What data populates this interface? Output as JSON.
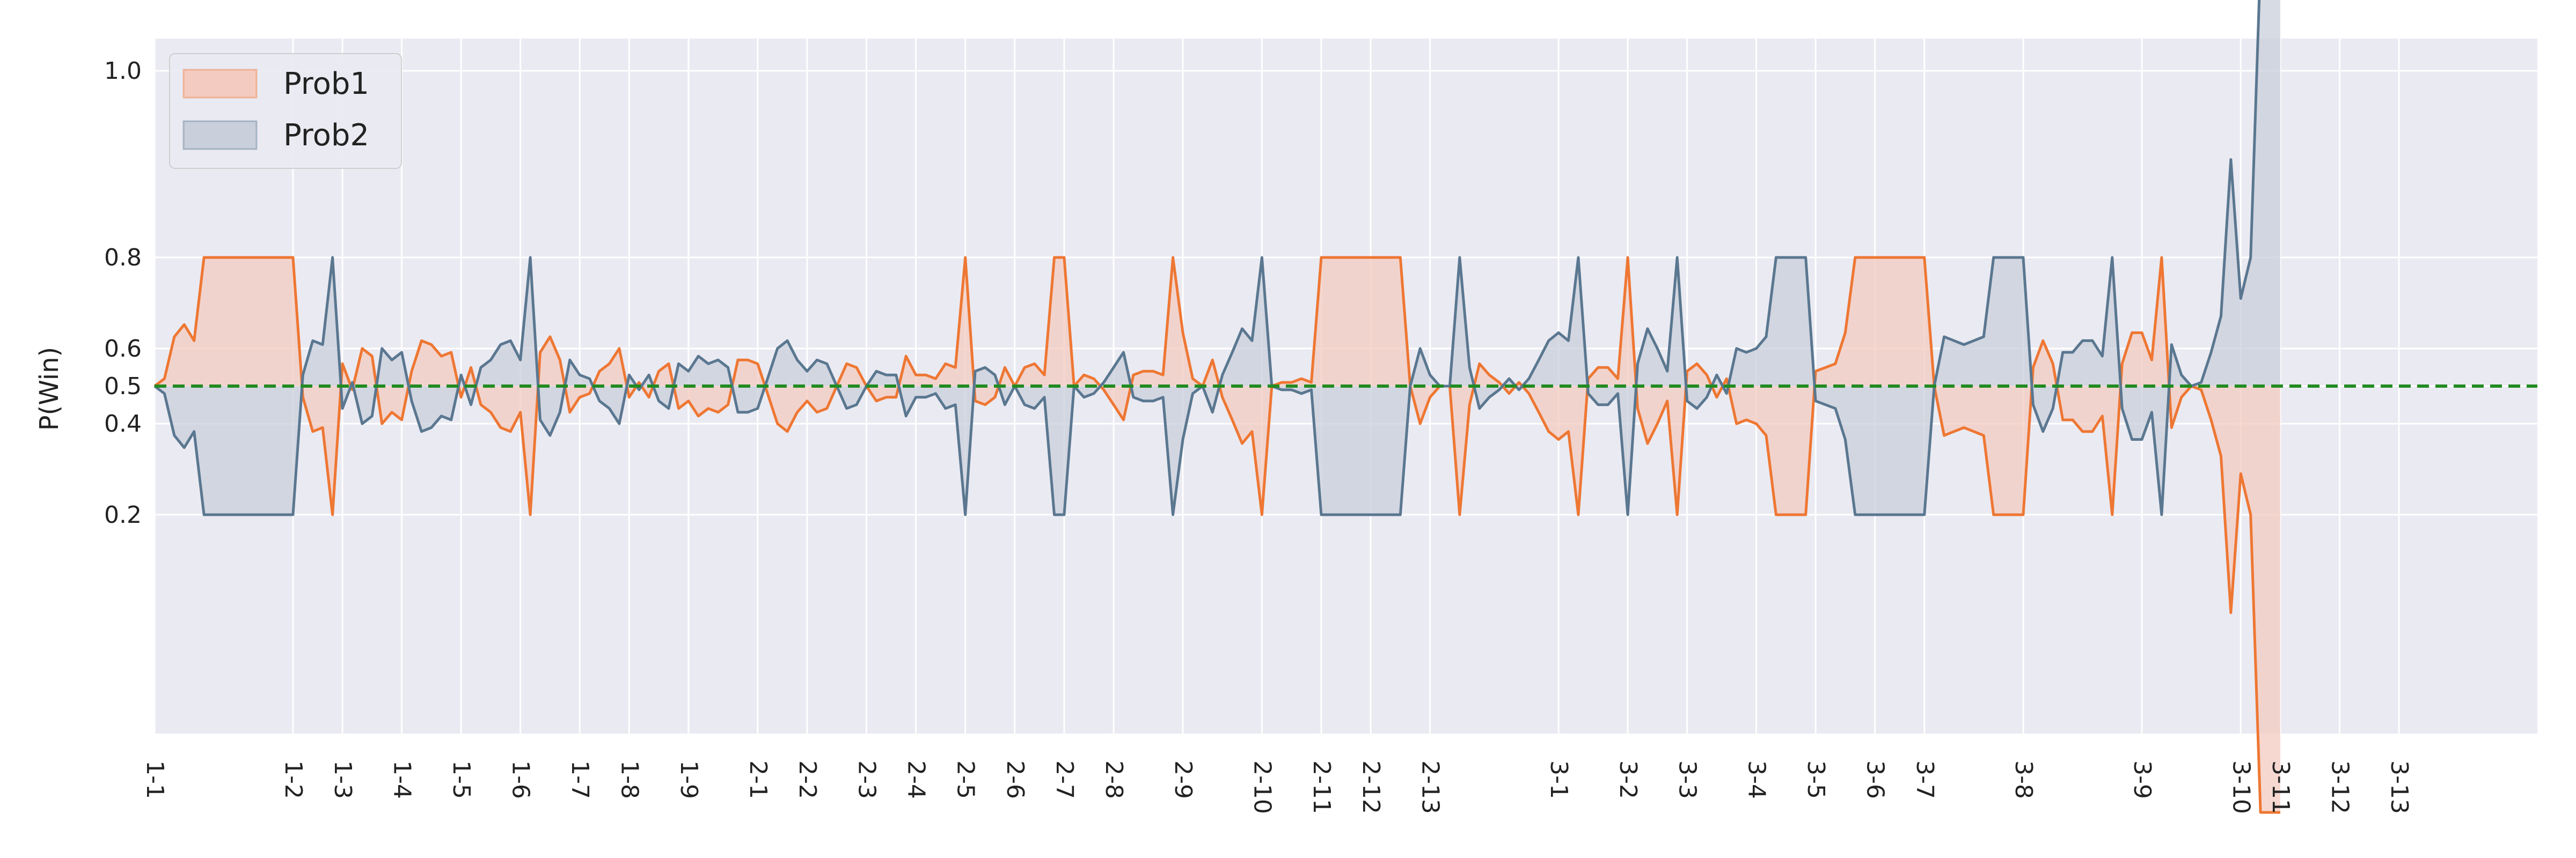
{
  "chart_data": {
    "type": "area",
    "title": "",
    "xlabel": "",
    "ylabel": "P(Win)",
    "ylim": [
      0.0,
      1.05
    ],
    "y_scale": "logit",
    "yticks": [
      0.2,
      0.4,
      0.5,
      0.6,
      0.8,
      1.0
    ],
    "ytick_labels": [
      "0.2",
      "0.4",
      "0.5",
      "0.6",
      "0.8",
      "1.0"
    ],
    "xticks": [
      {
        "x": 0,
        "label": "1-1"
      },
      {
        "x": 14,
        "label": "1-2"
      },
      {
        "x": 19,
        "label": "1-3"
      },
      {
        "x": 25,
        "label": "1-4"
      },
      {
        "x": 31,
        "label": "1-5"
      },
      {
        "x": 37,
        "label": "1-6"
      },
      {
        "x": 43,
        "label": "1-7"
      },
      {
        "x": 48,
        "label": "1-8"
      },
      {
        "x": 54,
        "label": "1-9"
      },
      {
        "x": 61,
        "label": "2-1"
      },
      {
        "x": 66,
        "label": "2-2"
      },
      {
        "x": 72,
        "label": "2-3"
      },
      {
        "x": 77,
        "label": "2-4"
      },
      {
        "x": 82,
        "label": "2-5"
      },
      {
        "x": 87,
        "label": "2-6"
      },
      {
        "x": 92,
        "label": "2-7"
      },
      {
        "x": 97,
        "label": "2-8"
      },
      {
        "x": 104,
        "label": "2-9"
      },
      {
        "x": 112,
        "label": "2-10"
      },
      {
        "x": 118,
        "label": "2-11"
      },
      {
        "x": 123,
        "label": "2-12"
      },
      {
        "x": 129,
        "label": "2-13"
      },
      {
        "x": 142,
        "label": "3-1"
      },
      {
        "x": 149,
        "label": "3-2"
      },
      {
        "x": 155,
        "label": "3-3"
      },
      {
        "x": 162,
        "label": "3-4"
      },
      {
        "x": 168,
        "label": "3-5"
      },
      {
        "x": 174,
        "label": "3-6"
      },
      {
        "x": 179,
        "label": "3-7"
      },
      {
        "x": 189,
        "label": "3-8"
      },
      {
        "x": 201,
        "label": "3-9"
      },
      {
        "x": 211,
        "label": "3-10"
      },
      {
        "x": 215,
        "label": "3-11"
      },
      {
        "x": 221,
        "label": "3-12"
      },
      {
        "x": 227,
        "label": "3-13"
      }
    ],
    "xlim": [
      0,
      241
    ],
    "reference_line": {
      "y": 0.5,
      "color": "#228b22",
      "style": "dashed"
    },
    "grid": true,
    "legend_position": "top-left",
    "series": [
      {
        "name": "Prob1",
        "color": "#ee7733",
        "fill": "#f3cbc0",
        "values": [
          0.5,
          0.52,
          0.63,
          0.66,
          0.62,
          0.8,
          0.8,
          0.8,
          0.8,
          0.8,
          0.8,
          0.8,
          0.8,
          0.8,
          0.8,
          0.47,
          0.38,
          0.39,
          0.2,
          0.56,
          0.49,
          0.6,
          0.58,
          0.4,
          0.43,
          0.41,
          0.54,
          0.62,
          0.61,
          0.58,
          0.59,
          0.47,
          0.55,
          0.45,
          0.43,
          0.39,
          0.38,
          0.43,
          0.2,
          0.59,
          0.63,
          0.57,
          0.43,
          0.47,
          0.48,
          0.54,
          0.56,
          0.6,
          0.47,
          0.51,
          0.47,
          0.54,
          0.56,
          0.44,
          0.46,
          0.42,
          0.44,
          0.43,
          0.45,
          0.57,
          0.57,
          0.56,
          0.48,
          0.4,
          0.38,
          0.43,
          0.46,
          0.43,
          0.44,
          0.5,
          0.56,
          0.55,
          0.5,
          0.46,
          0.47,
          0.47,
          0.58,
          0.53,
          0.53,
          0.52,
          0.56,
          0.55,
          0.8,
          0.46,
          0.45,
          0.47,
          0.55,
          0.5,
          0.55,
          0.56,
          0.53,
          0.8,
          0.8,
          0.5,
          0.53,
          0.52,
          0.49,
          0.45,
          0.41,
          0.53,
          0.54,
          0.54,
          0.53,
          0.8,
          0.64,
          0.52,
          0.5,
          0.57,
          0.47,
          0.41,
          0.35,
          0.38,
          0.2,
          0.5,
          0.51,
          0.51,
          0.52,
          0.51,
          0.8,
          0.8,
          0.8,
          0.8,
          0.8,
          0.8,
          0.8,
          0.8,
          0.8,
          0.5,
          0.4,
          0.47,
          0.5,
          0.5,
          0.2,
          0.45,
          0.56,
          0.53,
          0.51,
          0.48,
          0.51,
          0.48,
          0.43,
          0.38,
          0.36,
          0.38,
          0.2,
          0.52,
          0.55,
          0.55,
          0.52,
          0.8,
          0.44,
          0.35,
          0.4,
          0.46,
          0.2,
          0.54,
          0.56,
          0.53,
          0.47,
          0.52,
          0.4,
          0.41,
          0.4,
          0.37,
          0.2,
          0.2,
          0.2,
          0.2,
          0.54,
          0.55,
          0.56,
          0.64,
          0.8,
          0.8,
          0.8,
          0.8,
          0.8,
          0.8,
          0.8,
          0.8,
          0.5,
          0.37,
          0.38,
          0.39,
          0.38,
          0.37,
          0.2,
          0.2,
          0.2,
          0.2,
          0.55,
          0.62,
          0.56,
          0.41,
          0.41,
          0.38,
          0.38,
          0.42,
          0.2,
          0.56,
          0.64,
          0.64,
          0.57,
          0.8,
          0.39,
          0.47,
          0.5,
          0.49,
          0.41,
          0.32,
          0.08,
          0.28,
          0.2,
          0.01,
          0.01,
          0.01
        ]
      },
      {
        "name": "Prob2",
        "color": "#5a7790",
        "fill": "#c9cfdb",
        "values": [
          0.5,
          0.48,
          0.37,
          0.34,
          0.38,
          0.2,
          0.2,
          0.2,
          0.2,
          0.2,
          0.2,
          0.2,
          0.2,
          0.2,
          0.2,
          0.53,
          0.62,
          0.61,
          0.8,
          0.44,
          0.51,
          0.4,
          0.42,
          0.6,
          0.57,
          0.59,
          0.46,
          0.38,
          0.39,
          0.42,
          0.41,
          0.53,
          0.45,
          0.55,
          0.57,
          0.61,
          0.62,
          0.57,
          0.8,
          0.41,
          0.37,
          0.43,
          0.57,
          0.53,
          0.52,
          0.46,
          0.44,
          0.4,
          0.53,
          0.49,
          0.53,
          0.46,
          0.44,
          0.56,
          0.54,
          0.58,
          0.56,
          0.57,
          0.55,
          0.43,
          0.43,
          0.44,
          0.52,
          0.6,
          0.62,
          0.57,
          0.54,
          0.57,
          0.56,
          0.5,
          0.44,
          0.45,
          0.5,
          0.54,
          0.53,
          0.53,
          0.42,
          0.47,
          0.47,
          0.48,
          0.44,
          0.45,
          0.2,
          0.54,
          0.55,
          0.53,
          0.45,
          0.5,
          0.45,
          0.44,
          0.47,
          0.2,
          0.2,
          0.5,
          0.47,
          0.48,
          0.51,
          0.55,
          0.59,
          0.47,
          0.46,
          0.46,
          0.47,
          0.2,
          0.36,
          0.48,
          0.5,
          0.43,
          0.53,
          0.59,
          0.65,
          0.62,
          0.8,
          0.5,
          0.49,
          0.49,
          0.48,
          0.49,
          0.2,
          0.2,
          0.2,
          0.2,
          0.2,
          0.2,
          0.2,
          0.2,
          0.2,
          0.5,
          0.6,
          0.53,
          0.5,
          0.5,
          0.8,
          0.55,
          0.44,
          0.47,
          0.49,
          0.52,
          0.49,
          0.52,
          0.57,
          0.62,
          0.64,
          0.62,
          0.8,
          0.48,
          0.45,
          0.45,
          0.48,
          0.2,
          0.56,
          0.65,
          0.6,
          0.54,
          0.8,
          0.46,
          0.44,
          0.47,
          0.53,
          0.48,
          0.6,
          0.59,
          0.6,
          0.63,
          0.8,
          0.8,
          0.8,
          0.8,
          0.46,
          0.45,
          0.44,
          0.36,
          0.2,
          0.2,
          0.2,
          0.2,
          0.2,
          0.2,
          0.2,
          0.2,
          0.5,
          0.63,
          0.62,
          0.61,
          0.62,
          0.63,
          0.8,
          0.8,
          0.8,
          0.8,
          0.45,
          0.38,
          0.44,
          0.59,
          0.59,
          0.62,
          0.62,
          0.58,
          0.8,
          0.44,
          0.36,
          0.36,
          0.43,
          0.2,
          0.61,
          0.53,
          0.5,
          0.51,
          0.59,
          0.68,
          0.92,
          0.72,
          0.8,
          0.99,
          0.99,
          0.99
        ]
      }
    ]
  }
}
